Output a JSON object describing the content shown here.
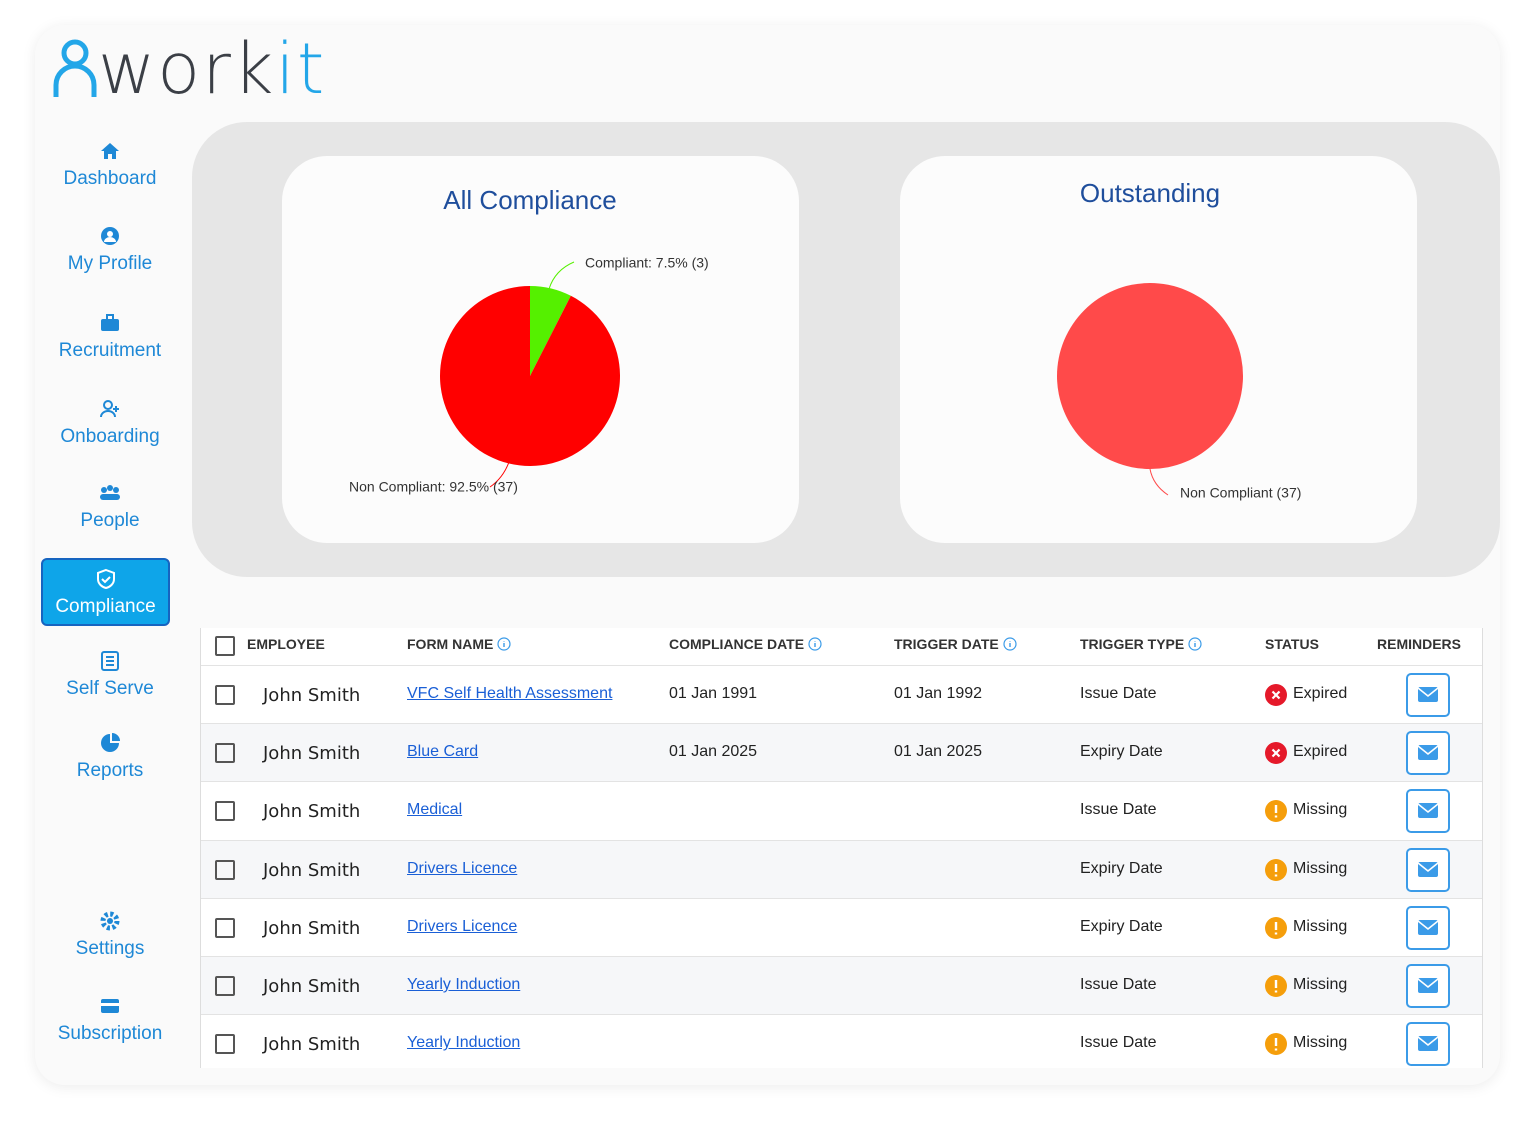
{
  "logo": [
    "work",
    "it"
  ],
  "nav": [
    "Dashboard",
    "My Profile",
    "Recruitment",
    "Onboarding",
    "People",
    "Compliance",
    "Self Serve",
    "Reports",
    "Settings",
    "Subscription"
  ],
  "charts": [
    {
      "type": "pie",
      "title": "All Compliance",
      "slices": [
        {
          "label": "Compliant: 7.5% (3)",
          "value": 3,
          "color": "#55f000"
        },
        {
          "label": "Non Compliant: 92.5% (37)",
          "value": 37,
          "color": "#ff0000"
        }
      ]
    },
    {
      "type": "pie",
      "title": "Outstanding",
      "slices": [
        {
          "label": "Non Compliant (37)",
          "value": 37,
          "color": "#ff4a4a"
        }
      ]
    }
  ],
  "table": {
    "headers": [
      "EMPLOYEE",
      "FORM NAME",
      "COMPLIANCE DATE",
      "TRIGGER DATE",
      "TRIGGER TYPE",
      "STATUS",
      "REMINDERS"
    ],
    "rows": [
      {
        "employee": "John Smith",
        "form": "VFC Self Health Assessment",
        "compliance_date": "01 Jan 1991",
        "trigger_date": "01 Jan 1992",
        "trigger_type": "Issue Date",
        "status": "Expired",
        "status_color": "#e5192a"
      },
      {
        "employee": "John Smith",
        "form": "Blue Card",
        "compliance_date": "01 Jan 2025",
        "trigger_date": "01 Jan 2025",
        "trigger_type": "Expiry Date",
        "status": "Expired",
        "status_color": "#e5192a"
      },
      {
        "employee": "John Smith",
        "form": "Medical",
        "trigger_type": "Issue Date",
        "status": "Missing",
        "status_color": "#f59e0b"
      },
      {
        "employee": "John Smith",
        "form": "Drivers Licence",
        "trigger_type": "Expiry Date",
        "status": "Missing",
        "status_color": "#f59e0b"
      },
      {
        "employee": "John Smith",
        "form": "Drivers Licence",
        "trigger_type": "Expiry Date",
        "status": "Missing",
        "status_color": "#f59e0b"
      },
      {
        "employee": "John Smith",
        "form": "Yearly Induction",
        "trigger_type": "Issue Date",
        "status": "Missing",
        "status_color": "#f59e0b"
      },
      {
        "employee": "John Smith",
        "form": "Yearly Induction",
        "trigger_type": "Issue Date",
        "status": "Missing",
        "status_color": "#f59e0b"
      }
    ]
  }
}
